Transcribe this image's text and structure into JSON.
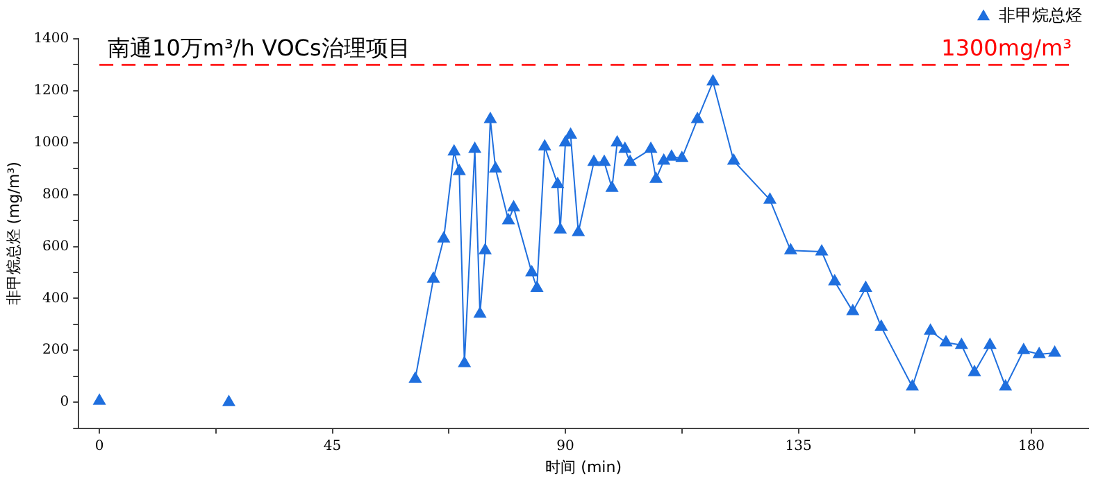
{
  "chart_data": {
    "type": "line",
    "title": "南通10万m³/h VOCs治理项目",
    "xlabel": "时间 (min)",
    "ylabel": "非甲烷总烃 (mg/m³)",
    "x": [
      0,
      12,
      25,
      43,
      61,
      64.5,
      66.5,
      68.5,
      69.5,
      70.5,
      72.5,
      73.5,
      74.5,
      75.5,
      76.5,
      79,
      80,
      83.5,
      84.5,
      86,
      88.5,
      89,
      90,
      91,
      92.5,
      95.5,
      97.5,
      99,
      100,
      101.5,
      102.5,
      106.5,
      107.5,
      109,
      110.5,
      112.5,
      115.5,
      118.5,
      122.5,
      129.5,
      133.5,
      139.5,
      142,
      145.5,
      148,
      151,
      157,
      160.5,
      163.5,
      166.5,
      169,
      172,
      175,
      178.5,
      181.5,
      184.5
    ],
    "series": [
      {
        "name": "非甲烷总烃",
        "color": "#1f6fde",
        "values": [
          5,
          null,
          0,
          null,
          90,
          475,
          630,
          965,
          890,
          150,
          975,
          340,
          585,
          1090,
          900,
          700,
          750,
          500,
          440,
          985,
          840,
          665,
          1000,
          1030,
          655,
          925,
          925,
          825,
          1000,
          975,
          925,
          975,
          860,
          930,
          945,
          940,
          1090,
          1235,
          930,
          780,
          585,
          580,
          465,
          350,
          440,
          290,
          60,
          275,
          230,
          220,
          115,
          220,
          60,
          200,
          185,
          190
        ]
      }
    ],
    "xlim": [
      -4,
      191
    ],
    "xticks": [
      0,
      {
        "value": 22.5,
        "label": null
      },
      45,
      {
        "value": 67.5,
        "label": null
      },
      90,
      {
        "value": 112.5,
        "label": null
      },
      135,
      {
        "value": 157.5,
        "label": null
      },
      180
    ],
    "ylim": [
      -100,
      1400
    ],
    "yticks": [
      {
        "value": -100,
        "label": null
      },
      0,
      {
        "value": 100,
        "label": null
      },
      200,
      {
        "value": 300,
        "label": null
      },
      400,
      {
        "value": 500,
        "label": null
      },
      600,
      {
        "value": 700,
        "label": null
      },
      800,
      {
        "value": 900,
        "label": null
      },
      1000,
      {
        "value": 1100,
        "label": null
      },
      1200,
      {
        "value": 1300,
        "label": null
      },
      1400
    ],
    "ref_lines": [
      {
        "axis": "y",
        "value": 1300,
        "label": "1300mg/m³",
        "color": "#ff0000",
        "line_style": "dashed"
      }
    ],
    "grid": false,
    "legend": "top right",
    "marker": "triangle",
    "line_style": "solid"
  }
}
